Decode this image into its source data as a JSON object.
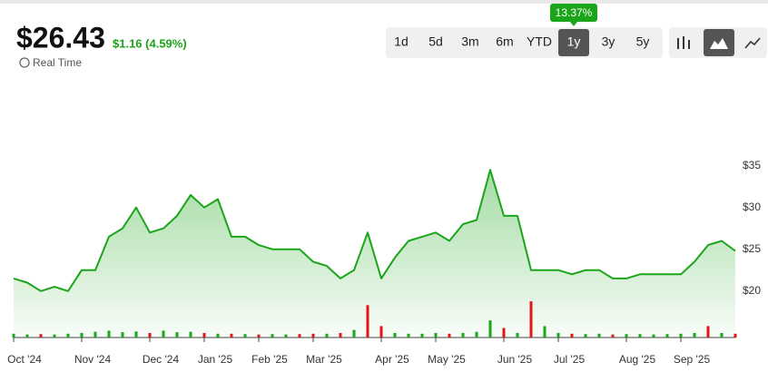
{
  "header": {
    "price": "$26.43",
    "change": "$1.16 (4.59%)",
    "realtime": "Real Time",
    "ranges": [
      "1d",
      "5d",
      "3m",
      "6m",
      "YTD",
      "1y",
      "3y",
      "5y"
    ],
    "active_range": "1y",
    "range_change": "13.37%"
  },
  "chart_data": {
    "type": "area",
    "categories": [
      "Oct '24",
      null,
      null,
      null,
      null,
      "Nov '24",
      null,
      null,
      null,
      null,
      "Dec '24",
      null,
      null,
      null,
      "Jan '25",
      null,
      null,
      null,
      "Feb '25",
      null,
      null,
      null,
      "Mar '25",
      null,
      null,
      null,
      null,
      "Apr '25",
      null,
      null,
      null,
      "May '25",
      null,
      null,
      null,
      null,
      "Jun '25",
      null,
      null,
      null,
      "Jul '25",
      null,
      null,
      null,
      null,
      "Aug '25",
      null,
      null,
      null,
      "Sep '25",
      null,
      null,
      null,
      null
    ],
    "values": [
      21.5,
      21,
      20,
      20.5,
      20,
      22.5,
      22.5,
      26.5,
      27.5,
      30,
      27,
      27.5,
      29,
      31.5,
      30,
      31,
      26.5,
      26.5,
      25.5,
      25,
      25,
      25,
      23.5,
      23,
      21.5,
      22.5,
      27,
      21.5,
      24,
      26,
      26.5,
      27,
      26,
      28,
      28.5,
      34.5,
      29,
      29,
      22.5,
      22.5,
      22.5,
      22,
      22.5,
      22.5,
      21.5,
      21.5,
      22,
      22,
      22,
      22,
      23.5,
      25.5,
      26,
      24.8
    ],
    "color": "#1aa51a",
    "ylim": [
      14,
      38
    ],
    "yticks": [
      {
        "value": 20,
        "label": "$20"
      },
      {
        "value": 25,
        "label": "$25"
      },
      {
        "value": 30,
        "label": "$30"
      },
      {
        "value": 35,
        "label": "$35"
      }
    ],
    "volume": {
      "ylim": [
        0,
        100
      ],
      "up_color": "#1aa51a",
      "down_color": "#e0161b",
      "values": [
        10,
        8,
        9,
        8,
        10,
        12,
        15,
        18,
        14,
        16,
        12,
        18,
        14,
        15,
        12,
        10,
        10,
        9,
        8,
        9,
        8,
        9,
        10,
        10,
        12,
        20,
        85,
        30,
        12,
        10,
        10,
        12,
        10,
        12,
        15,
        45,
        25,
        12,
        95,
        30,
        12,
        10,
        9,
        10,
        8,
        9,
        9,
        8,
        9,
        10,
        12,
        30,
        12,
        10
      ],
      "down": [
        false,
        false,
        true,
        false,
        false,
        false,
        false,
        false,
        false,
        false,
        true,
        false,
        false,
        false,
        true,
        false,
        true,
        false,
        true,
        false,
        false,
        true,
        true,
        false,
        true,
        false,
        true,
        true,
        false,
        false,
        false,
        false,
        true,
        false,
        false,
        false,
        true,
        false,
        true,
        false,
        false,
        true,
        false,
        false,
        true,
        false,
        false,
        false,
        false,
        false,
        false,
        true,
        false,
        true
      ]
    }
  }
}
